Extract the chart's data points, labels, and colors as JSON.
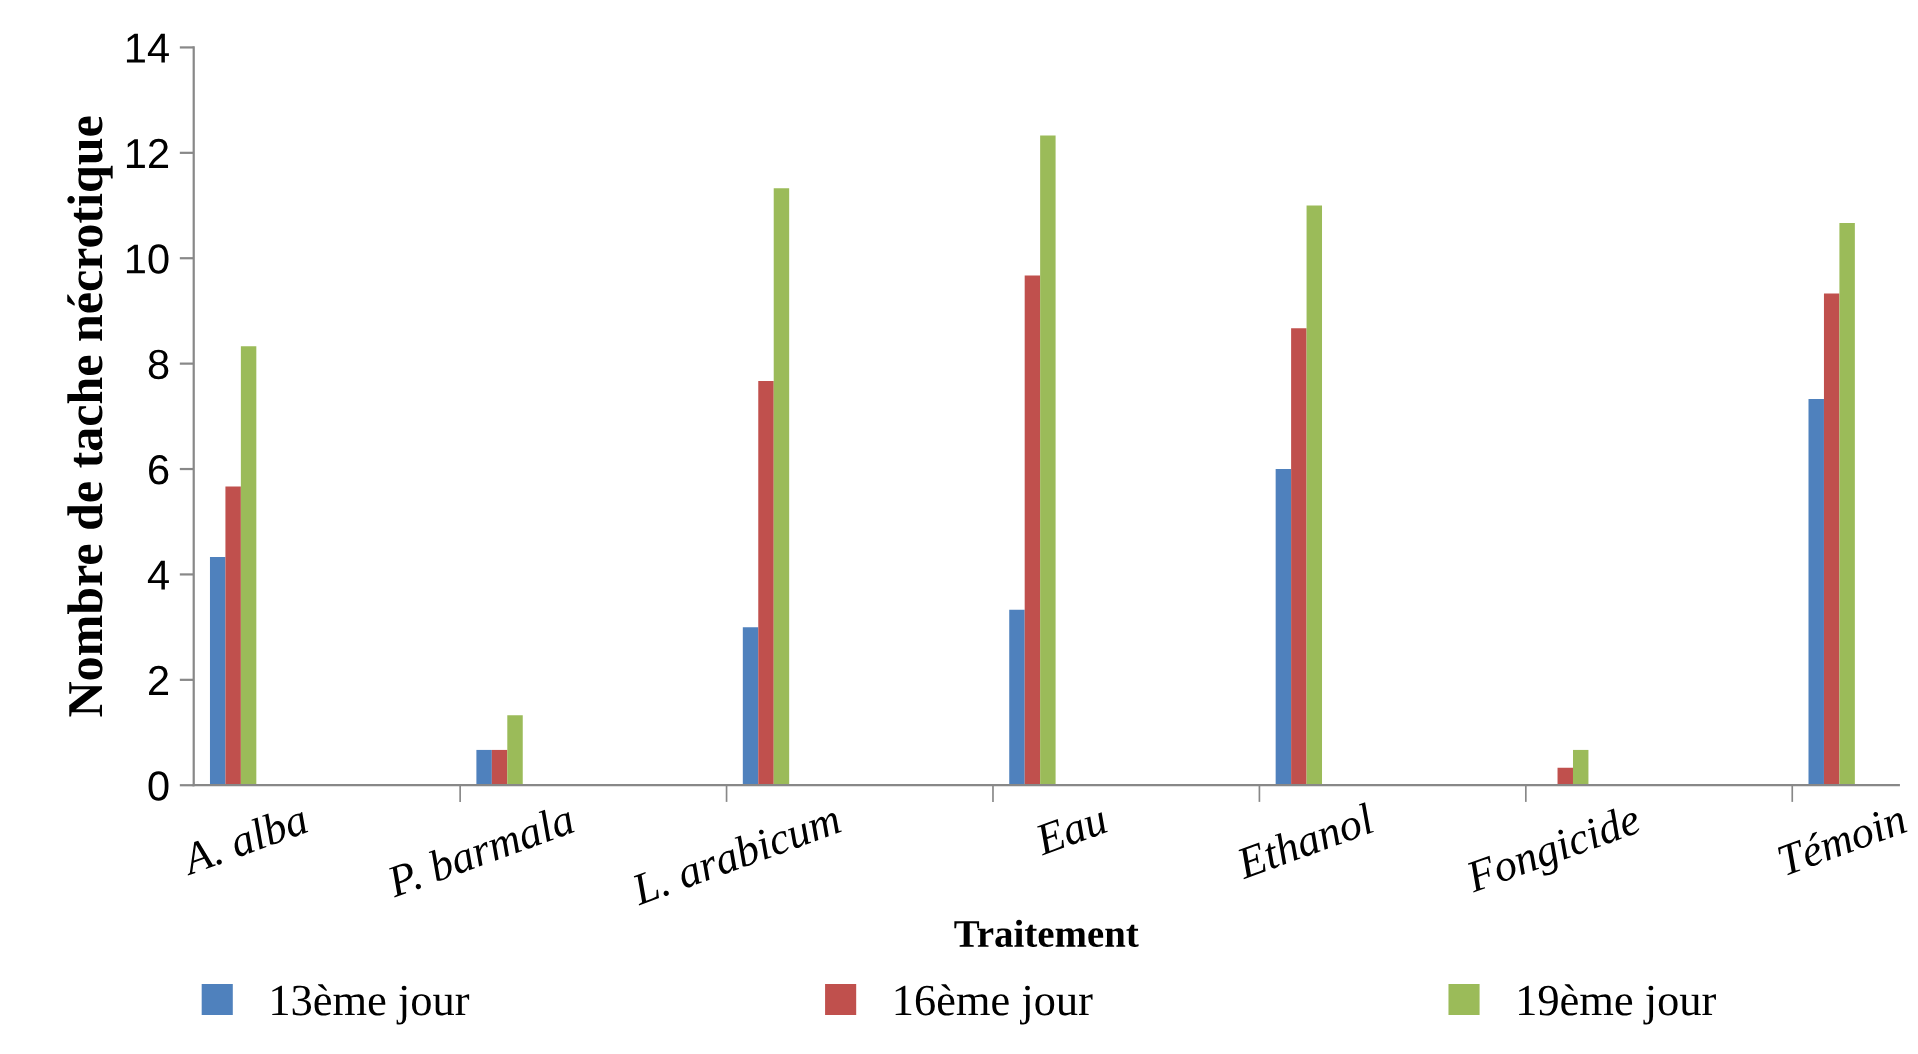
{
  "chart_data": {
    "type": "bar",
    "xlabel": "Traitement",
    "ylabel": "Nombre de tache nécrotique",
    "categories": [
      "A. alba",
      "P. barmala",
      "L. arabicum",
      "Eau",
      "Ethanol",
      "Fongicide",
      "Témoin"
    ],
    "series": [
      {
        "name": "13ème jour",
        "color": "#4f81bd",
        "values": [
          4.33,
          0.67,
          3.0,
          3.33,
          6.0,
          0,
          7.33
        ]
      },
      {
        "name": "16ème jour",
        "color": "#c0504d",
        "values": [
          5.67,
          0.67,
          7.67,
          9.67,
          8.67,
          0.33,
          9.33
        ]
      },
      {
        "name": "19ème jour",
        "color": "#9bbb59",
        "values": [
          8.33,
          1.33,
          11.33,
          12.33,
          11.0,
          0.67,
          10.67
        ]
      }
    ],
    "ylim": [
      0,
      14
    ],
    "yticks": [
      0,
      2,
      4,
      6,
      8,
      10,
      12,
      14
    ],
    "grid": false,
    "legend": "bottom"
  }
}
